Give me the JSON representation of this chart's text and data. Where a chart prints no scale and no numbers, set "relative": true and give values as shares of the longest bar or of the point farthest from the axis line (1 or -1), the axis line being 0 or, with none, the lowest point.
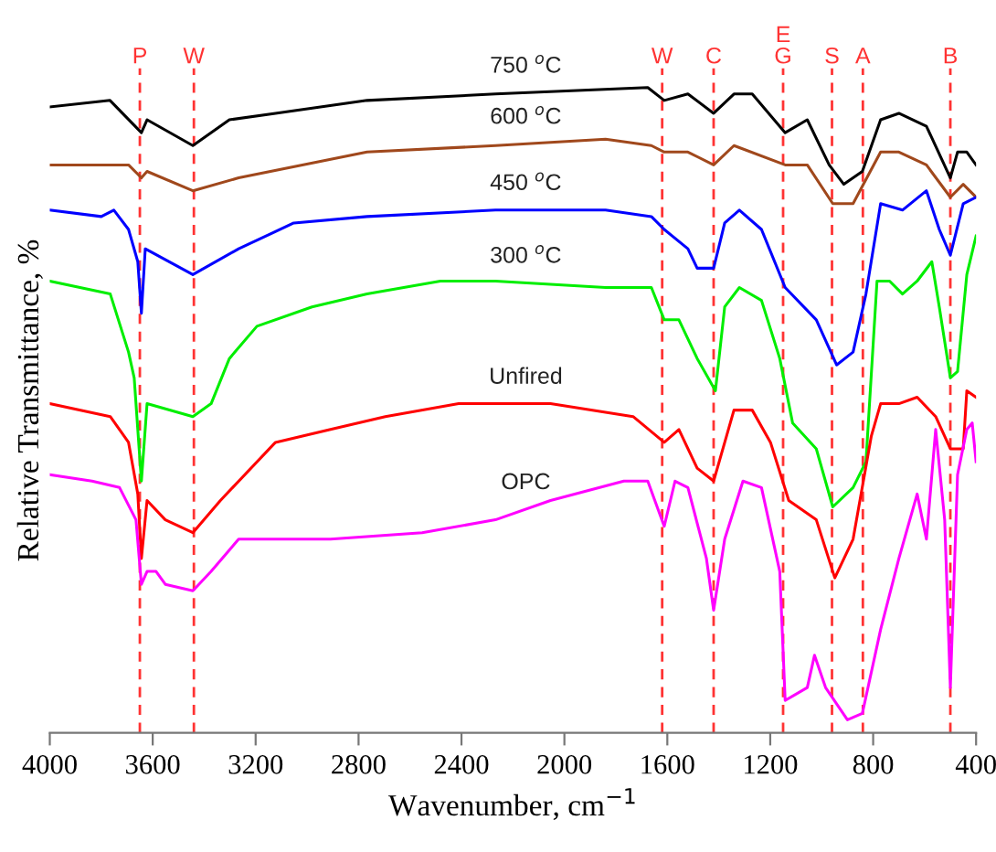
{
  "chart_data": {
    "type": "line",
    "relative": true,
    "xlabel": "Wavenumber, cm$^{−1}$",
    "ylabel": "Relative Transmittance, %",
    "xlim": [
      4000,
      400
    ],
    "xticks": [
      4000,
      3600,
      3200,
      2800,
      2400,
      2000,
      1600,
      1200,
      800,
      400
    ],
    "grid": false,
    "legend": false,
    "marker": "none",
    "line_style": "solid",
    "series": [
      {
        "name": "750 $^{o}$C",
        "color": "#000000",
        "x": [
          4000,
          3766,
          3644,
          3622,
          3444,
          3302,
          3123,
          2767,
          2268,
          1676,
          1612,
          1520,
          1420,
          1341,
          1270,
          1142,
          1056,
          971,
          914,
          842,
          771,
          700,
          593,
          500,
          472,
          436,
          400
        ],
        "values": [
          0.97,
          0.98,
          0.93,
          0.95,
          0.91,
          0.95,
          0.96,
          0.98,
          0.99,
          1.0,
          0.98,
          0.99,
          0.96,
          0.99,
          0.99,
          0.93,
          0.95,
          0.88,
          0.85,
          0.87,
          0.95,
          0.96,
          0.94,
          0.86,
          0.9,
          0.9,
          0.88
        ]
      },
      {
        "name": "600 $^{o}$C",
        "color": "#a0481c",
        "x": [
          4000,
          3694,
          3644,
          3622,
          3444,
          3266,
          2767,
          2268,
          1840,
          1662,
          1612,
          1520,
          1420,
          1341,
          1142,
          1056,
          957,
          878,
          771,
          700,
          593,
          500,
          450,
          400
        ],
        "values": [
          0.88,
          0.88,
          0.86,
          0.87,
          0.84,
          0.86,
          0.9,
          0.91,
          0.92,
          0.91,
          0.9,
          0.9,
          0.88,
          0.91,
          0.88,
          0.88,
          0.82,
          0.82,
          0.9,
          0.9,
          0.88,
          0.83,
          0.85,
          0.83
        ]
      },
      {
        "name": "450 $^{o}$C",
        "color": "#0000ff",
        "x": [
          4000,
          3800,
          3751,
          3694,
          3658,
          3644,
          3629,
          3444,
          3266,
          3052,
          2767,
          2268,
          1840,
          1662,
          1612,
          1520,
          1484,
          1420,
          1377,
          1320,
          1234,
          1142,
          1021,
          942,
          878,
          828,
          771,
          686,
          593,
          543,
          500,
          450,
          400
        ],
        "values": [
          0.81,
          0.8,
          0.81,
          0.78,
          0.73,
          0.65,
          0.75,
          0.71,
          0.75,
          0.79,
          0.8,
          0.81,
          0.81,
          0.8,
          0.78,
          0.75,
          0.72,
          0.72,
          0.79,
          0.81,
          0.78,
          0.69,
          0.64,
          0.57,
          0.59,
          0.68,
          0.82,
          0.81,
          0.84,
          0.78,
          0.74,
          0.82,
          0.83
        ]
      },
      {
        "name": "300 $^{o}$C",
        "color": "#00ee00",
        "x": [
          4000,
          3765,
          3694,
          3672,
          3644,
          3622,
          3444,
          3373,
          3302,
          3195,
          2981,
          2767,
          2482,
          2268,
          1840,
          1662,
          1612,
          1555,
          1484,
          1413,
          1377,
          1320,
          1234,
          1163,
          1113,
          1021,
          957,
          878,
          828,
          785,
          736,
          686,
          629,
          572,
          543,
          500,
          472,
          436,
          400
        ],
        "values": [
          0.7,
          0.68,
          0.59,
          0.55,
          0.39,
          0.51,
          0.49,
          0.51,
          0.58,
          0.63,
          0.66,
          0.68,
          0.7,
          0.7,
          0.69,
          0.69,
          0.64,
          0.64,
          0.58,
          0.53,
          0.66,
          0.69,
          0.67,
          0.58,
          0.48,
          0.44,
          0.35,
          0.38,
          0.42,
          0.7,
          0.7,
          0.68,
          0.7,
          0.73,
          0.66,
          0.55,
          0.56,
          0.71,
          0.77
        ]
      },
      {
        "name": "Unfired",
        "color": "#ff0000",
        "x": [
          4000,
          3765,
          3694,
          3658,
          3644,
          3622,
          3551,
          3444,
          3337,
          3123,
          2909,
          2696,
          2411,
          2054,
          1733,
          1612,
          1555,
          1484,
          1420,
          1341,
          1270,
          1199,
          1128,
          1021,
          949,
          878,
          807,
          771,
          700,
          629,
          557,
          500,
          450,
          436,
          400
        ],
        "values": [
          0.51,
          0.49,
          0.45,
          0.37,
          0.27,
          0.36,
          0.33,
          0.31,
          0.36,
          0.45,
          0.47,
          0.49,
          0.51,
          0.51,
          0.49,
          0.45,
          0.47,
          0.41,
          0.39,
          0.5,
          0.5,
          0.45,
          0.36,
          0.33,
          0.24,
          0.3,
          0.46,
          0.51,
          0.51,
          0.52,
          0.49,
          0.44,
          0.44,
          0.53,
          0.52
        ]
      },
      {
        "name": "OPC",
        "color": "#ff00ff",
        "x": [
          4000,
          3836,
          3729,
          3665,
          3644,
          3622,
          3587,
          3551,
          3444,
          3373,
          3266,
          3123,
          2909,
          2553,
          2268,
          2054,
          1769,
          1676,
          1612,
          1570,
          1520,
          1448,
          1420,
          1377,
          1306,
          1234,
          1163,
          1142,
          1056,
          1028,
          985,
          900,
          842,
          771,
          700,
          629,
          593,
          557,
          522,
          500,
          472,
          436,
          415,
          400
        ],
        "values": [
          0.4,
          0.39,
          0.38,
          0.33,
          0.23,
          0.25,
          0.25,
          0.23,
          0.22,
          0.25,
          0.3,
          0.3,
          0.3,
          0.31,
          0.33,
          0.36,
          0.39,
          0.39,
          0.32,
          0.39,
          0.38,
          0.27,
          0.19,
          0.3,
          0.39,
          0.38,
          0.25,
          0.05,
          0.07,
          0.12,
          0.07,
          0.02,
          0.03,
          0.16,
          0.27,
          0.37,
          0.3,
          0.47,
          0.33,
          0.07,
          0.4,
          0.47,
          0.48,
          0.42
        ]
      }
    ],
    "ref_lines": [
      {
        "axis": "x",
        "value": 3650,
        "label": "P",
        "color": "#ff3333",
        "line_style": "dashed"
      },
      {
        "axis": "x",
        "value": 3440,
        "label": "W",
        "color": "#ff3333",
        "line_style": "dashed"
      },
      {
        "axis": "x",
        "value": 1620,
        "label": "W",
        "color": "#ff3333",
        "line_style": "dashed"
      },
      {
        "axis": "x",
        "value": 1420,
        "label": "C",
        "color": "#ff3333",
        "line_style": "dashed"
      },
      {
        "axis": "x",
        "value": 1150,
        "label": "E\nG",
        "color": "#ff3333",
        "line_style": "dashed"
      },
      {
        "axis": "x",
        "value": 960,
        "label": "S",
        "color": "#ff3333",
        "line_style": "dashed"
      },
      {
        "axis": "x",
        "value": 840,
        "label": "A",
        "color": "#ff3333",
        "line_style": "dashed"
      },
      {
        "axis": "x",
        "value": 500,
        "label": "B",
        "color": "#ff3333",
        "line_style": "dashed"
      }
    ]
  }
}
